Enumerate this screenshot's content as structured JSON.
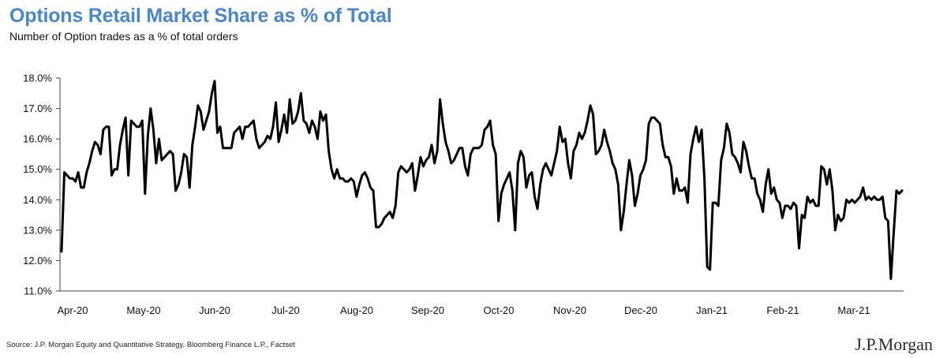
{
  "header": {
    "title": "Options Retail Market Share as % of Total",
    "subtitle": "Number of Option trades as a % of total orders"
  },
  "footer": {
    "source": "Source: J.P. Morgan Equity and Quantitative Strategy, Bloomberg Finance L.P., Factset",
    "logo": "J.P.Morgan"
  },
  "colors": {
    "title": "#4a86c8",
    "line": "#000000",
    "axis": "#444444"
  },
  "chart_data": {
    "type": "line",
    "title": "Options Retail Market Share as % of Total",
    "subtitle": "Number of Option trades as a % of total orders",
    "ylim": [
      11,
      18
    ],
    "y_ticks": [
      "11.0%",
      "12.0%",
      "13.0%",
      "14.0%",
      "15.0%",
      "16.0%",
      "17.0%",
      "18.0%"
    ],
    "y_tick_values": [
      11,
      12,
      13,
      14,
      15,
      16,
      17,
      18
    ],
    "x_ticks": [
      "Apr-20",
      "May-20",
      "Jun-20",
      "Jul-20",
      "Aug-20",
      "Sep-20",
      "Oct-20",
      "Nov-20",
      "Dec-20",
      "Jan-21",
      "Feb-21",
      "Mar-21"
    ],
    "grid": false,
    "legend": "none",
    "series": [
      {
        "values": [
          12.3,
          14.9,
          14.8,
          14.7,
          14.7,
          14.6,
          14.9,
          14.4,
          14.4,
          14.9,
          15.2,
          15.6,
          15.9,
          15.8,
          15.5,
          16.3,
          16.4,
          16.4,
          14.8,
          15.0,
          15.0,
          15.8,
          16.3,
          16.7,
          14.8,
          16.6,
          16.5,
          16.4,
          16.4,
          16.6,
          14.2,
          16.1,
          17.0,
          16.3,
          15.2,
          16.0,
          15.3,
          15.4,
          15.5,
          15.6,
          15.5,
          14.3,
          14.5,
          14.9,
          15.5,
          15.4,
          14.4,
          15.8,
          16.4,
          17.1,
          16.9,
          16.3,
          16.6,
          16.9,
          17.5,
          17.9,
          16.2,
          16.4,
          15.7,
          15.7,
          15.7,
          15.7,
          16.2,
          16.3,
          16.4,
          16.0,
          16.4,
          16.4,
          16.5,
          16.6,
          16.0,
          15.7,
          15.8,
          15.9,
          16.1,
          16.0,
          16.4,
          17.2,
          15.9,
          16.3,
          16.8,
          16.2,
          17.3,
          16.5,
          16.6,
          16.9,
          17.5,
          16.6,
          16.5,
          16.2,
          16.6,
          16.4,
          16.0,
          16.9,
          16.6,
          16.8,
          15.6,
          15.0,
          14.7,
          15.0,
          14.7,
          14.7,
          14.6,
          14.6,
          14.7,
          14.6,
          14.1,
          14.5,
          14.8,
          14.9,
          14.7,
          14.4,
          14.3,
          13.1,
          13.1,
          13.2,
          13.4,
          13.5,
          13.6,
          13.4,
          13.8,
          14.9,
          15.1,
          15.0,
          14.9,
          15.0,
          15.2,
          14.3,
          14.8,
          15.4,
          15.1,
          15.3,
          15.4,
          15.8,
          15.2,
          15.6,
          17.3,
          16.5,
          15.9,
          15.6,
          15.2,
          15.3,
          15.5,
          15.7,
          15.7,
          15.1,
          14.8,
          15.5,
          15.7,
          15.7,
          15.7,
          15.8,
          16.3,
          16.4,
          16.6,
          15.8,
          15.5,
          13.3,
          14.2,
          14.5,
          14.7,
          14.9,
          14.3,
          13.0,
          15.2,
          15.6,
          15.4,
          14.4,
          14.8,
          14.9,
          14.1,
          13.7,
          14.5,
          15.0,
          15.2,
          15.0,
          14.8,
          15.2,
          15.6,
          16.4,
          15.9,
          16.0,
          15.2,
          14.7,
          15.6,
          15.8,
          16.2,
          16.0,
          16.2,
          16.6,
          17.1,
          16.8,
          15.5,
          15.6,
          15.8,
          16.3,
          15.9,
          15.6,
          15.2,
          15.0,
          14.5,
          13.0,
          13.6,
          14.5,
          15.3,
          14.8,
          13.8,
          14.2,
          14.8,
          15.0,
          15.3,
          16.5,
          16.7,
          16.7,
          16.6,
          16.5,
          15.8,
          15.4,
          15.4,
          15.1,
          14.2,
          14.7,
          14.3,
          14.3,
          14.4,
          13.9,
          15.5,
          16.0,
          16.4,
          15.9,
          16.3,
          14.7,
          11.8,
          11.7,
          13.9,
          13.9,
          13.8,
          15.3,
          15.7,
          16.5,
          16.2,
          15.5,
          15.4,
          15.2,
          14.9,
          15.9,
          15.6,
          15.1,
          14.7,
          14.7,
          14.2,
          14.0,
          13.6,
          14.5,
          15.0,
          14.2,
          14.4,
          14.0,
          13.9,
          13.4,
          13.8,
          13.8,
          13.7,
          13.9,
          13.8,
          12.4,
          13.5,
          13.4,
          14.1,
          13.9,
          14.0,
          13.8,
          13.8,
          15.1,
          15.0,
          14.5,
          15.0,
          14.3,
          13.0,
          13.5,
          13.3,
          13.4,
          14.0,
          13.9,
          14.0,
          13.9,
          14.0,
          14.1,
          14.4,
          14.0,
          14.1,
          14.0,
          14.1,
          14.0,
          14.0,
          14.1,
          13.4,
          13.3,
          11.4,
          12.9,
          14.3,
          14.2,
          14.3
        ]
      }
    ]
  }
}
